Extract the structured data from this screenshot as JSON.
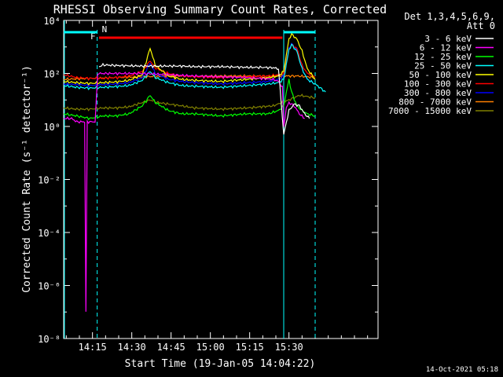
{
  "chart_data": {
    "type": "line",
    "title": "RHESSI Observing Summary Count Rates, Corrected",
    "xlabel": "Start Time (19-Jan-05 14:04:22)",
    "ylabel": "Corrected Count Rate (s⁻¹ detector⁻¹)",
    "y_scale": "log",
    "ylim": [
      1e-08,
      10000.0
    ],
    "xlim_min": [
      0,
      120
    ],
    "x_ticks": [
      {
        "min": 11,
        "label": "14:15"
      },
      {
        "min": 26,
        "label": "14:30"
      },
      {
        "min": 41,
        "label": "14:45"
      },
      {
        "min": 56,
        "label": "15:00"
      },
      {
        "min": 71,
        "label": "15:15"
      },
      {
        "min": 86,
        "label": "15:30"
      }
    ],
    "y_ticks": [
      {
        "exp": 4,
        "label": "10⁴"
      },
      {
        "exp": 2,
        "label": "10²"
      },
      {
        "exp": 0,
        "label": "10⁰"
      },
      {
        "exp": -2,
        "label": "10⁻²"
      },
      {
        "exp": -4,
        "label": "10⁻⁴"
      },
      {
        "exp": -6,
        "label": "10⁻⁶"
      },
      {
        "exp": -8,
        "label": "10⁻⁸"
      }
    ],
    "legend_header": [
      "Det 1,3,4,5,6,9,",
      "Att 0"
    ],
    "series": [
      {
        "name": "3 - 6 keV",
        "color": "#ffffff",
        "x": [
          13.5,
          15,
          20,
          30,
          40,
          45,
          50,
          60,
          70,
          75,
          80,
          82,
          84,
          86,
          88,
          90,
          92,
          93.8
        ],
        "y": [
          180,
          210,
          200,
          190,
          190,
          190,
          180,
          180,
          170,
          170,
          165,
          150,
          0.5,
          4,
          7,
          6,
          3,
          2
        ]
      },
      {
        "name": "6 - 12 keV",
        "color": "#ff00ff",
        "x": [
          0,
          3,
          5,
          8,
          8.5,
          9,
          10,
          12,
          13,
          15,
          20,
          30,
          40,
          50,
          60,
          70,
          80,
          82,
          83.5,
          84,
          85,
          86,
          88,
          90,
          92
        ],
        "y": [
          2,
          2,
          1.5,
          1.5,
          1e-07,
          1.5,
          1.5,
          1.5,
          100,
          100,
          100,
          100,
          90,
          80,
          75,
          70,
          60,
          50,
          30,
          1,
          5,
          8,
          6,
          3,
          2
        ]
      },
      {
        "name": "12 - 25 keV",
        "color": "#00ff00",
        "x": [
          0,
          5,
          10,
          15,
          20,
          25,
          30,
          33,
          35,
          40,
          45,
          50,
          60,
          70,
          78,
          82,
          84,
          86,
          87,
          89,
          91,
          93,
          96
        ],
        "y": [
          3,
          2.5,
          2,
          2.5,
          2.5,
          3,
          6,
          15,
          8,
          4,
          3,
          3,
          2.5,
          3,
          3,
          4,
          6,
          60,
          20,
          6,
          4,
          3,
          2.5
        ]
      },
      {
        "name": "25 - 50 keV",
        "color": "#00ffff",
        "x": [
          0,
          5,
          10,
          15,
          20,
          25,
          30,
          33,
          35,
          40,
          45,
          50,
          60,
          70,
          78,
          82,
          84,
          86,
          87,
          89,
          91,
          93,
          96,
          100
        ],
        "y": [
          35,
          30,
          28,
          30,
          32,
          35,
          55,
          120,
          70,
          45,
          35,
          33,
          30,
          35,
          40,
          45,
          60,
          800,
          1200,
          700,
          150,
          60,
          40,
          20
        ]
      },
      {
        "name": "50 - 100 keV",
        "color": "#ffff00",
        "x": [
          0,
          5,
          10,
          15,
          20,
          25,
          30,
          33,
          35,
          40,
          45,
          50,
          60,
          70,
          78,
          82,
          84,
          86,
          87,
          89,
          91,
          93,
          96
        ],
        "y": [
          50,
          45,
          42,
          45,
          48,
          55,
          90,
          900,
          200,
          80,
          60,
          55,
          50,
          60,
          70,
          80,
          120,
          2000,
          3000,
          2000,
          700,
          150,
          60
        ]
      },
      {
        "name": "100 - 300 keV",
        "color": "#ff0000",
        "x": [
          0,
          5,
          10,
          15,
          20,
          25,
          30,
          33,
          35,
          40,
          45,
          50,
          60,
          70,
          78,
          82,
          84,
          86,
          87,
          89,
          91,
          93,
          96
        ],
        "y": [
          90,
          70,
          65,
          65,
          70,
          80,
          120,
          300,
          160,
          100,
          80,
          75,
          70,
          75,
          80,
          90,
          100,
          800,
          1200,
          900,
          200,
          100,
          80
        ]
      },
      {
        "name": "300 - 800 keV",
        "color": "#0000ff",
        "x": [
          0,
          5,
          10,
          15,
          20,
          25,
          30,
          33,
          35,
          40,
          45,
          50,
          60,
          70,
          78,
          82,
          84,
          86,
          87,
          89,
          91,
          93,
          96
        ],
        "y": [
          40,
          38,
          35,
          38,
          40,
          45,
          70,
          250,
          100,
          60,
          50,
          45,
          40,
          45,
          50,
          60,
          80,
          900,
          1300,
          800,
          150,
          60,
          40
        ]
      },
      {
        "name": "800 - 7000 keV",
        "color": "#ff8000",
        "x": [
          0,
          10,
          20,
          30,
          40,
          50,
          60,
          70,
          80,
          90,
          96
        ],
        "y": [
          60,
          65,
          70,
          75,
          80,
          80,
          80,
          80,
          80,
          80,
          70
        ]
      },
      {
        "name": "7000 - 15000 keV",
        "color": "#808000",
        "x": [
          0,
          5,
          10,
          15,
          20,
          25,
          30,
          33,
          36,
          40,
          45,
          50,
          60,
          70,
          80,
          86,
          90,
          96
        ],
        "y": [
          5,
          4.5,
          4.5,
          5,
          5,
          5.5,
          8,
          10,
          8,
          7,
          6,
          5,
          4.5,
          5,
          6,
          10,
          15,
          12
        ]
      }
    ],
    "flags": {
      "F": {
        "label": "F",
        "color": "#ff0000",
        "x_start": 13.5,
        "x_end": 83.5
      },
      "N": {
        "label": "N",
        "color": "#00ffff",
        "x_ranges": [
          [
            0,
            12.8
          ],
          [
            84,
            96
          ]
        ]
      }
    },
    "night_lines_solid": [
      84
    ],
    "night_lines_dashed": [
      12.8,
      96
    ]
  },
  "footer": "14-Oct-2021 05:18"
}
